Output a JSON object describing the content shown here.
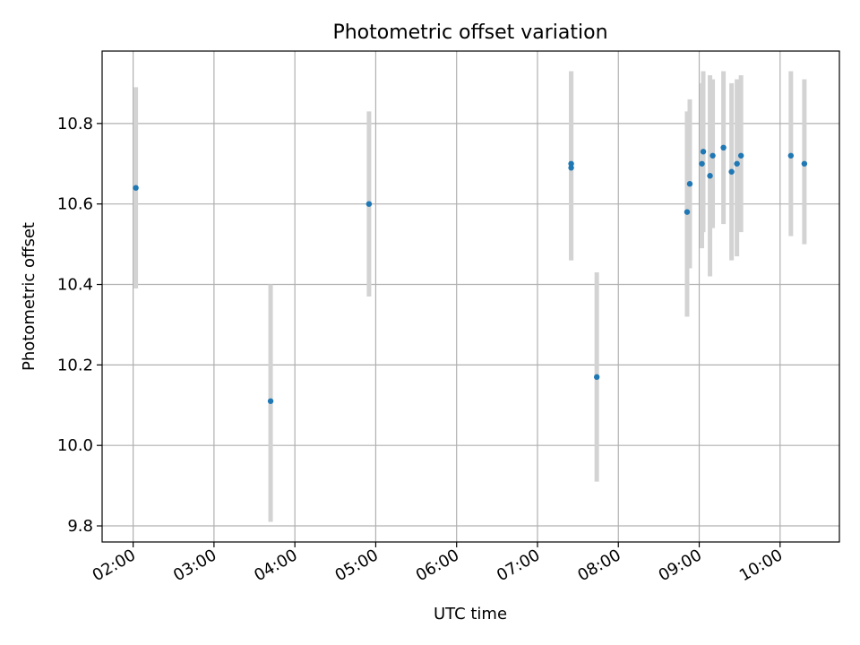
{
  "chart_data": {
    "type": "scatter",
    "title": "Photometric offset variation",
    "xlabel": "UTC time",
    "ylabel": "Photometric offset",
    "x_tick_labels": [
      "02:00",
      "03:00",
      "04:00",
      "05:00",
      "06:00",
      "07:00",
      "08:00",
      "09:00",
      "10:00"
    ],
    "x_ticks": [
      "02:00",
      "03:00",
      "04:00",
      "05:00",
      "06:00",
      "07:00",
      "08:00",
      "09:00",
      "10:00"
    ],
    "y_ticks": [
      9.8,
      10.0,
      10.2,
      10.4,
      10.6,
      10.8
    ],
    "y_tick_labels": [
      "9.8",
      "10.0",
      "10.2",
      "10.4",
      "10.6",
      "10.8"
    ],
    "xlim": [
      "01:37",
      "10:44"
    ],
    "ylim": [
      9.76,
      10.98
    ],
    "grid": true,
    "colors": {
      "point": "#1f77b4",
      "errorbar": "#d3d3d3",
      "grid": "#b0b0b0"
    },
    "points": [
      {
        "x": "02:02",
        "y": 10.64,
        "err_low": 10.39,
        "err_high": 10.89
      },
      {
        "x": "03:42",
        "y": 10.11,
        "err_low": 9.81,
        "err_high": 10.4
      },
      {
        "x": "04:55",
        "y": 10.6,
        "err_low": 10.37,
        "err_high": 10.83
      },
      {
        "x": "07:25",
        "y": 10.69,
        "err_low": 10.46,
        "err_high": 10.93
      },
      {
        "x": "07:25",
        "y": 10.7,
        "err_low": 10.46,
        "err_high": 10.93
      },
      {
        "x": "07:44",
        "y": 10.17,
        "err_low": 9.91,
        "err_high": 10.43
      },
      {
        "x": "08:51",
        "y": 10.58,
        "err_low": 10.32,
        "err_high": 10.83
      },
      {
        "x": "08:53",
        "y": 10.65,
        "err_low": 10.44,
        "err_high": 10.86
      },
      {
        "x": "09:02",
        "y": 10.7,
        "err_low": 10.49,
        "err_high": 10.9
      },
      {
        "x": "09:03",
        "y": 10.73,
        "err_low": 10.53,
        "err_high": 10.93
      },
      {
        "x": "09:08",
        "y": 10.67,
        "err_low": 10.42,
        "err_high": 10.92
      },
      {
        "x": "09:10",
        "y": 10.72,
        "err_low": 10.54,
        "err_high": 10.91
      },
      {
        "x": "09:18",
        "y": 10.74,
        "err_low": 10.55,
        "err_high": 10.93
      },
      {
        "x": "09:24",
        "y": 10.68,
        "err_low": 10.46,
        "err_high": 10.9
      },
      {
        "x": "09:28",
        "y": 10.7,
        "err_low": 10.47,
        "err_high": 10.91
      },
      {
        "x": "09:31",
        "y": 10.72,
        "err_low": 10.53,
        "err_high": 10.92
      },
      {
        "x": "10:08",
        "y": 10.72,
        "err_low": 10.52,
        "err_high": 10.93
      },
      {
        "x": "10:18",
        "y": 10.7,
        "err_low": 10.5,
        "err_high": 10.91
      }
    ]
  }
}
